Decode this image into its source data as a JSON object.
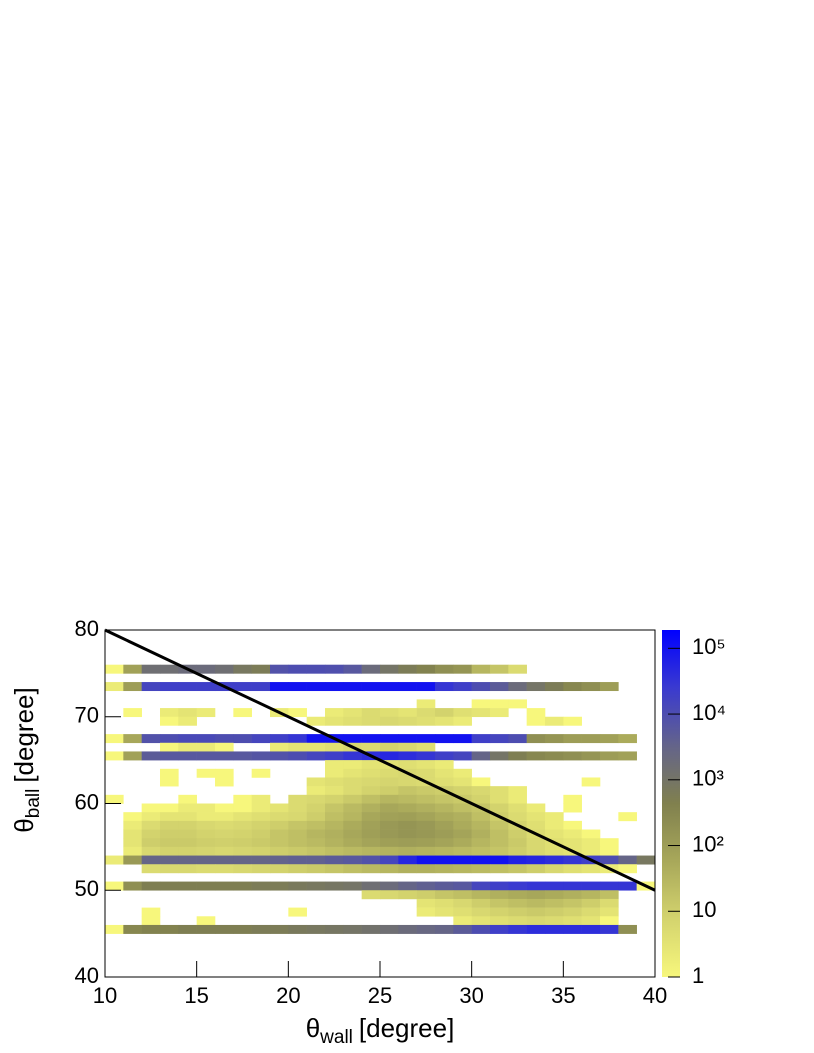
{
  "chart_data": {
    "type": "heatmap",
    "xlabel": {
      "symbol": "θ",
      "sub": "wall",
      "unit": "[degree]"
    },
    "ylabel": {
      "symbol": "θ",
      "sub": "ball",
      "unit": "[degree]"
    },
    "xlim": [
      10,
      40
    ],
    "ylim": [
      40,
      80
    ],
    "xticks": [
      10,
      15,
      20,
      25,
      30,
      35,
      40
    ],
    "yticks": [
      40,
      50,
      60,
      70,
      80
    ],
    "zlim": [
      1,
      190000
    ],
    "zlog": true,
    "zticks": [
      1,
      10,
      {
        "value": 100,
        "label": "10²"
      },
      {
        "value": 1000,
        "label": "10³"
      },
      {
        "value": 10000,
        "label": "10⁴"
      },
      {
        "value": 100000,
        "label": "10⁵"
      }
    ],
    "colormap": [
      "#f7f77c",
      "#d4d46e",
      "#a8a85a",
      "#80804e",
      "#64648a",
      "#3a3ad0",
      "#0000ff"
    ],
    "xbins": [
      10,
      11,
      12,
      13,
      14,
      15,
      16,
      17,
      18,
      19,
      20,
      21,
      22,
      23,
      24,
      25,
      26,
      27,
      28,
      29,
      30,
      31,
      32,
      33,
      34,
      35,
      36,
      37,
      38,
      39,
      40
    ],
    "rows": [
      {
        "y": [
          75,
          76
        ],
        "values": [
          1,
          80,
          1500,
          1500,
          2000,
          2000,
          1500,
          800,
          600,
          8000,
          10000,
          10000,
          9000,
          6000,
          2000,
          1000,
          600,
          400,
          200,
          150,
          30,
          15,
          5,
          null,
          null,
          null,
          null,
          null,
          null,
          null
        ]
      },
      {
        "y": [
          73,
          74
        ],
        "values": [
          2,
          100,
          15000,
          20000,
          20000,
          20000,
          20000,
          20000,
          20000,
          100000,
          100000,
          100000,
          100000,
          100000,
          100000,
          100000,
          100000,
          100000,
          30000,
          20000,
          10000,
          5000,
          2000,
          1000,
          600,
          300,
          200,
          100,
          null,
          null
        ]
      },
      {
        "y": [
          71,
          72
        ],
        "values": [
          null,
          null,
          null,
          null,
          null,
          null,
          null,
          null,
          null,
          null,
          null,
          null,
          null,
          null,
          null,
          null,
          null,
          2,
          null,
          null,
          1,
          1,
          1,
          null,
          null,
          null,
          null,
          null,
          null,
          null
        ]
      },
      {
        "y": [
          70,
          71
        ],
        "values": [
          null,
          1,
          null,
          2,
          3,
          2,
          null,
          1,
          null,
          2,
          1,
          null,
          2,
          3,
          5,
          4,
          3,
          5,
          8,
          4,
          3,
          2,
          null,
          1,
          null,
          null,
          null,
          null,
          null,
          null
        ]
      },
      {
        "y": [
          69,
          70
        ],
        "values": [
          null,
          null,
          null,
          1,
          2,
          null,
          null,
          null,
          null,
          null,
          null,
          2,
          3,
          4,
          5,
          6,
          5,
          4,
          3,
          2,
          null,
          null,
          null,
          1,
          2,
          1,
          null,
          null,
          null,
          null
        ]
      },
      {
        "y": [
          67,
          68
        ],
        "values": [
          1,
          60,
          8000,
          10000,
          12000,
          12000,
          10000,
          10000,
          15000,
          20000,
          30000,
          100000,
          100000,
          100000,
          100000,
          100000,
          100000,
          100000,
          100000,
          100000,
          20000,
          15000,
          10000,
          200,
          150,
          100,
          100,
          80,
          50,
          null
        ]
      },
      {
        "y": [
          66,
          67
        ],
        "values": [
          null,
          null,
          null,
          1,
          2,
          2,
          1,
          null,
          null,
          2,
          3,
          3,
          4,
          6,
          5,
          8,
          6,
          4,
          null,
          null,
          null,
          null,
          null,
          null,
          null,
          null,
          null,
          null,
          null,
          null
        ]
      },
      {
        "y": [
          65,
          66
        ],
        "values": [
          1,
          80,
          5000,
          6000,
          6000,
          6000,
          6000,
          6000,
          7000,
          8000,
          10000,
          15000,
          20000,
          30000,
          40000,
          50000,
          40000,
          30000,
          20000,
          15000,
          3000,
          1000,
          500,
          300,
          250,
          200,
          150,
          100,
          80,
          null
        ]
      },
      {
        "y": [
          64,
          65
        ],
        "values": [
          null,
          null,
          null,
          null,
          null,
          null,
          null,
          null,
          null,
          null,
          null,
          null,
          2,
          2,
          3,
          3,
          4,
          3,
          2,
          null,
          null,
          null,
          null,
          null,
          null,
          null,
          null,
          null,
          null,
          null
        ]
      },
      {
        "y": [
          63,
          64
        ],
        "values": [
          null,
          null,
          null,
          1,
          null,
          1,
          1,
          null,
          1,
          null,
          null,
          null,
          2,
          3,
          4,
          5,
          6,
          5,
          3,
          2,
          null,
          null,
          null,
          null,
          null,
          null,
          null,
          null,
          null,
          null
        ]
      },
      {
        "y": [
          62,
          63
        ],
        "values": [
          null,
          null,
          null,
          1,
          null,
          null,
          1,
          null,
          null,
          null,
          null,
          3,
          4,
          5,
          6,
          7,
          6,
          5,
          4,
          3,
          1,
          null,
          null,
          null,
          null,
          null,
          1,
          null,
          null,
          null
        ]
      },
      {
        "y": [
          61,
          62
        ],
        "values": [
          null,
          null,
          null,
          null,
          null,
          null,
          null,
          null,
          null,
          null,
          null,
          2,
          3,
          5,
          8,
          10,
          15,
          12,
          10,
          8,
          6,
          4,
          2,
          null,
          null,
          null,
          null,
          null,
          null,
          null
        ]
      },
      {
        "y": [
          60,
          61
        ],
        "values": [
          1,
          null,
          null,
          null,
          1,
          null,
          null,
          1,
          2,
          null,
          5,
          6,
          8,
          12,
          20,
          30,
          25,
          20,
          15,
          12,
          8,
          4,
          2,
          null,
          null,
          1,
          null,
          null,
          null,
          null
        ]
      },
      {
        "y": [
          59,
          60
        ],
        "values": [
          null,
          null,
          1,
          1,
          2,
          2,
          1,
          1,
          2,
          3,
          5,
          8,
          15,
          25,
          40,
          60,
          50,
          40,
          30,
          20,
          15,
          8,
          4,
          2,
          null,
          1,
          null,
          null,
          null,
          null
        ]
      },
      {
        "y": [
          58,
          59
        ],
        "values": [
          null,
          1,
          2,
          3,
          3,
          2,
          2,
          3,
          4,
          5,
          6,
          10,
          20,
          30,
          60,
          80,
          90,
          70,
          50,
          40,
          20,
          10,
          5,
          3,
          2,
          null,
          null,
          null,
          1,
          null
        ]
      },
      {
        "y": [
          57,
          58
        ],
        "values": [
          null,
          2,
          5,
          8,
          8,
          6,
          5,
          6,
          8,
          10,
          15,
          20,
          30,
          50,
          80,
          120,
          150,
          120,
          80,
          50,
          30,
          15,
          8,
          4,
          2,
          1,
          null,
          null,
          null,
          null
        ]
      },
      {
        "y": [
          56,
          57
        ],
        "values": [
          null,
          3,
          8,
          10,
          10,
          8,
          7,
          8,
          10,
          15,
          20,
          30,
          40,
          60,
          90,
          120,
          150,
          130,
          100,
          70,
          40,
          20,
          10,
          5,
          3,
          2,
          1,
          null,
          null,
          null
        ]
      },
      {
        "y": [
          55,
          56
        ],
        "values": [
          null,
          3,
          10,
          12,
          12,
          10,
          9,
          10,
          12,
          15,
          20,
          25,
          35,
          50,
          70,
          90,
          100,
          90,
          70,
          50,
          30,
          20,
          12,
          6,
          4,
          3,
          2,
          1,
          null,
          null
        ]
      },
      {
        "y": [
          54,
          55
        ],
        "values": [
          null,
          2,
          6,
          8,
          8,
          7,
          6,
          7,
          8,
          10,
          12,
          15,
          20,
          25,
          30,
          35,
          40,
          35,
          30,
          25,
          20,
          15,
          10,
          6,
          4,
          3,
          2,
          1,
          null,
          null
        ]
      },
      {
        "y": [
          53,
          54
        ],
        "values": [
          2,
          120,
          3000,
          3000,
          3000,
          3000,
          3000,
          3000,
          3000,
          3500,
          4000,
          4000,
          5000,
          6000,
          8000,
          15000,
          50000,
          100000,
          100000,
          100000,
          100000,
          100000,
          60000,
          50000,
          40000,
          30000,
          20000,
          10000,
          3000,
          800
        ]
      },
      {
        "y": [
          52,
          53
        ],
        "values": [
          null,
          null,
          5,
          6,
          6,
          5,
          5,
          6,
          7,
          8,
          10,
          12,
          15,
          20,
          25,
          30,
          40,
          40,
          35,
          30,
          25,
          20,
          15,
          10,
          6,
          4,
          3,
          2,
          1,
          null
        ]
      },
      {
        "y": [
          50,
          51
        ],
        "values": [
          1,
          200,
          500,
          500,
          500,
          500,
          500,
          500,
          600,
          600,
          700,
          800,
          900,
          1000,
          1500,
          2000,
          3000,
          4000,
          5000,
          6000,
          15000,
          20000,
          25000,
          30000,
          30000,
          30000,
          30000,
          30000,
          30000,
          1
        ]
      },
      {
        "y": [
          49,
          50
        ],
        "values": [
          null,
          null,
          null,
          null,
          null,
          null,
          null,
          null,
          null,
          null,
          null,
          null,
          null,
          null,
          5,
          6,
          8,
          10,
          15,
          20,
          30,
          40,
          50,
          60,
          50,
          40,
          30,
          20,
          null,
          null
        ]
      },
      {
        "y": [
          48,
          49
        ],
        "values": [
          null,
          null,
          null,
          null,
          null,
          null,
          null,
          null,
          null,
          null,
          null,
          null,
          null,
          null,
          null,
          null,
          null,
          3,
          4,
          6,
          10,
          15,
          20,
          25,
          20,
          15,
          10,
          5,
          null,
          null
        ]
      },
      {
        "y": [
          47,
          48
        ],
        "values": [
          null,
          null,
          1,
          null,
          null,
          null,
          null,
          null,
          null,
          null,
          1,
          null,
          null,
          null,
          null,
          null,
          null,
          2,
          3,
          4,
          6,
          8,
          10,
          12,
          10,
          8,
          5,
          3,
          null,
          null
        ]
      },
      {
        "y": [
          46,
          47
        ],
        "values": [
          null,
          null,
          1,
          null,
          null,
          1,
          null,
          null,
          null,
          null,
          null,
          null,
          null,
          null,
          null,
          null,
          null,
          null,
          null,
          2,
          3,
          4,
          5,
          6,
          5,
          4,
          3,
          1,
          null,
          null
        ]
      },
      {
        "y": [
          45,
          46
        ],
        "values": [
          1,
          300,
          400,
          400,
          500,
          500,
          500,
          500,
          600,
          600,
          700,
          800,
          900,
          1000,
          1200,
          1500,
          2000,
          2500,
          3000,
          5000,
          10000,
          20000,
          30000,
          40000,
          40000,
          40000,
          40000,
          30000,
          200,
          null
        ]
      }
    ],
    "lines": [
      {
        "x": [
          10,
          40
        ],
        "y": [
          80,
          50
        ],
        "color": "#000000"
      }
    ]
  }
}
